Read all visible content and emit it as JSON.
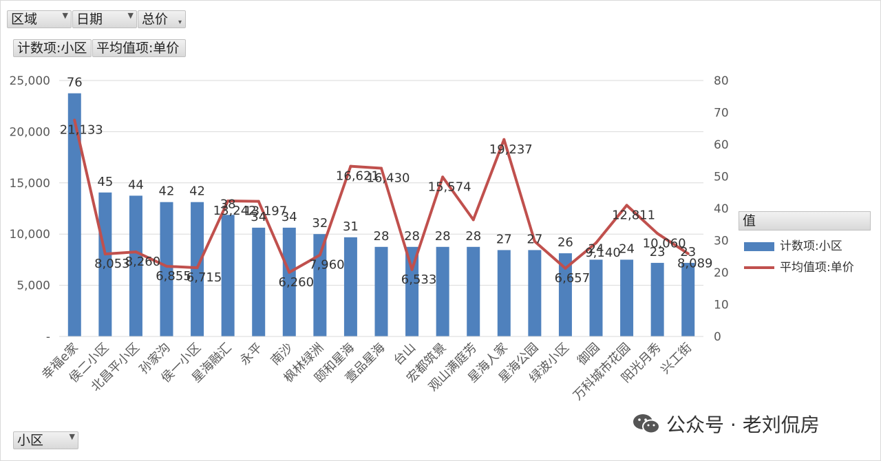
{
  "filters": {
    "region": "区域",
    "date": "日期",
    "total_price": "总价",
    "count_field": "计数项:小区",
    "avg_field": "平均值项:单价",
    "row_field": "小区"
  },
  "legend": {
    "title": "值",
    "count_label": "计数项:小区",
    "avg_label": "平均值项:单价"
  },
  "watermark": "公众号 · 老刘侃房",
  "colors": {
    "bar": "#4f81bd",
    "line": "#c0504d",
    "grid": "#d9d9d9"
  },
  "chart_data": {
    "type": "bar",
    "categories": [
      "幸福e家",
      "侯二小区",
      "北昌平小区",
      "孙家沟",
      "侯一小区",
      "星海融汇",
      "永平",
      "南沙",
      "枫林绿洲",
      "颐和星海",
      "壹品星海",
      "台山",
      "宏都筑景",
      "观山满庭芳",
      "星海人家",
      "星海公园",
      "绿波小区",
      "御园",
      "万科城市花园",
      "阳光月秀",
      "兴工街"
    ],
    "series": [
      {
        "name": "计数项:小区",
        "type": "bar",
        "axis": "right",
        "values": [
          76,
          45,
          44,
          42,
          42,
          38,
          34,
          34,
          32,
          31,
          28,
          28,
          28,
          28,
          27,
          27,
          26,
          24,
          24,
          23,
          23
        ]
      },
      {
        "name": "平均值项:单价",
        "type": "line",
        "axis": "left",
        "values": [
          21133,
          8053,
          8260,
          6855,
          6715,
          13242,
          13197,
          6260,
          7960,
          16621,
          16430,
          6533,
          15574,
          11400,
          19237,
          9280,
          6657,
          9140,
          12811,
          10060,
          8089
        ]
      }
    ],
    "avg_labels": [
      "21,133",
      "8,053",
      "8,260",
      "6,855",
      "6,715",
      "13,242",
      "13,197",
      "6,260",
      "7,960",
      "16,621",
      "16,430",
      "6,533",
      "15,574",
      "",
      "19,237",
      "",
      "6,657",
      "9,140",
      "12,811",
      "10,060",
      "8,089"
    ],
    "y_left": {
      "ylim": [
        0,
        25000
      ],
      "ticks": [
        "-",
        "5,000",
        "10,000",
        "15,000",
        "20,000",
        "25,000"
      ]
    },
    "y_right": {
      "ylim": [
        0,
        80
      ],
      "ticks": [
        "0",
        "10",
        "20",
        "30",
        "40",
        "50",
        "60",
        "70",
        "80"
      ]
    },
    "grid": true,
    "legend_position": "right"
  }
}
